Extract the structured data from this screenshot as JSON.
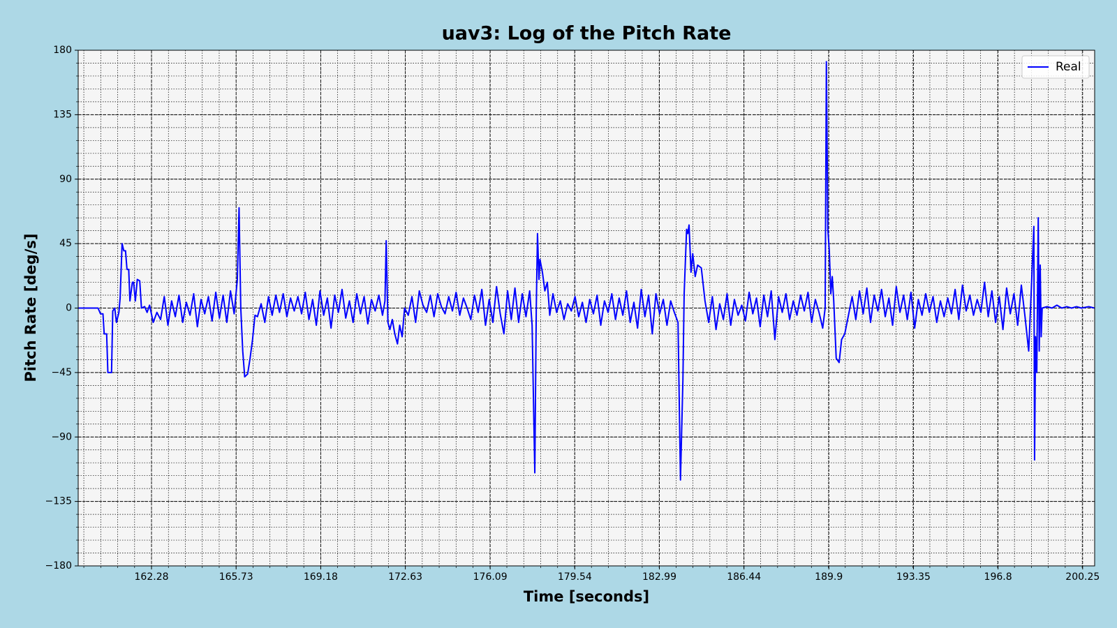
{
  "chart_data": {
    "type": "line",
    "title": "uav3: Log of the Pitch Rate",
    "xlabel": "Time [seconds]",
    "ylabel": "Pitch Rate [deg/s]",
    "xlim": [
      159.29,
      200.74
    ],
    "ylim": [
      -180,
      180
    ],
    "xticks": [
      162.28,
      165.73,
      169.18,
      172.63,
      176.09,
      179.54,
      182.99,
      186.44,
      189.9,
      193.35,
      196.8,
      200.25
    ],
    "yticks": [
      {
        "value": -180,
        "label": "−180"
      },
      {
        "value": -135,
        "label": "−135"
      },
      {
        "value": -90,
        "label": "−90"
      },
      {
        "value": -45,
        "label": "−45"
      },
      0,
      45,
      90,
      135,
      180
    ],
    "grid": true,
    "minor_grid": true,
    "legend": "upper right",
    "x": [
      159.29,
      160.1,
      160.2,
      160.3,
      160.35,
      160.45,
      160.5,
      160.65,
      160.7,
      160.78,
      160.85,
      160.95,
      161.0,
      161.08,
      161.15,
      161.22,
      161.28,
      161.35,
      161.4,
      161.5,
      161.55,
      161.62,
      161.7,
      161.8,
      161.87,
      162.0,
      162.1,
      162.2,
      162.35,
      162.5,
      162.65,
      162.8,
      162.95,
      163.1,
      163.25,
      163.4,
      163.55,
      163.7,
      163.85,
      164.0,
      164.15,
      164.3,
      164.45,
      164.6,
      164.75,
      164.9,
      165.05,
      165.2,
      165.35,
      165.5,
      165.65,
      165.78,
      165.85,
      165.92,
      166.0,
      166.08,
      166.2,
      166.3,
      166.4,
      166.5,
      166.6,
      166.75,
      166.9,
      167.05,
      167.2,
      167.35,
      167.5,
      167.65,
      167.8,
      167.95,
      168.1,
      168.25,
      168.4,
      168.55,
      168.7,
      168.85,
      169.0,
      169.15,
      169.3,
      169.45,
      169.6,
      169.75,
      169.9,
      170.05,
      170.2,
      170.35,
      170.5,
      170.65,
      170.8,
      170.95,
      171.1,
      171.25,
      171.4,
      171.55,
      171.7,
      171.8,
      171.85,
      171.92,
      172.0,
      172.1,
      172.2,
      172.31,
      172.4,
      172.5,
      172.6,
      172.75,
      172.9,
      173.05,
      173.2,
      173.35,
      173.5,
      173.65,
      173.8,
      173.95,
      174.1,
      174.25,
      174.4,
      174.55,
      174.7,
      174.85,
      175.0,
      175.15,
      175.3,
      175.45,
      175.6,
      175.75,
      175.9,
      176.05,
      176.2,
      176.35,
      176.5,
      176.65,
      176.8,
      176.95,
      177.1,
      177.25,
      177.4,
      177.55,
      177.7,
      177.8,
      177.91,
      177.97,
      178.02,
      178.08,
      178.12,
      178.22,
      178.32,
      178.42,
      178.52,
      178.65,
      178.8,
      178.95,
      179.1,
      179.25,
      179.4,
      179.55,
      179.7,
      179.85,
      180.0,
      180.15,
      180.3,
      180.45,
      180.6,
      180.75,
      180.9,
      181.05,
      181.2,
      181.35,
      181.5,
      181.65,
      181.8,
      181.95,
      182.1,
      182.25,
      182.4,
      182.55,
      182.7,
      182.85,
      183.0,
      183.15,
      183.3,
      183.45,
      183.6,
      183.75,
      183.85,
      183.95,
      184.0,
      184.1,
      184.15,
      184.2,
      184.28,
      184.35,
      184.45,
      184.55,
      184.7,
      184.85,
      185.0,
      185.15,
      185.3,
      185.45,
      185.6,
      185.75,
      185.9,
      186.05,
      186.2,
      186.35,
      186.5,
      186.65,
      186.8,
      186.95,
      187.1,
      187.25,
      187.4,
      187.55,
      187.7,
      187.85,
      188.0,
      188.15,
      188.3,
      188.45,
      188.6,
      188.75,
      188.9,
      189.05,
      189.2,
      189.35,
      189.5,
      189.65,
      189.75,
      189.8,
      189.86,
      189.92,
      189.98,
      190.04,
      190.1,
      190.2,
      190.32,
      190.42,
      190.55,
      190.7,
      190.85,
      191.0,
      191.15,
      191.3,
      191.45,
      191.6,
      191.75,
      191.9,
      192.05,
      192.2,
      192.35,
      192.5,
      192.65,
      192.8,
      192.95,
      193.1,
      193.25,
      193.4,
      193.55,
      193.7,
      193.85,
      194.0,
      194.15,
      194.3,
      194.45,
      194.6,
      194.75,
      194.9,
      195.05,
      195.2,
      195.35,
      195.5,
      195.65,
      195.8,
      195.95,
      196.1,
      196.25,
      196.4,
      196.55,
      196.7,
      196.85,
      197.0,
      197.15,
      197.3,
      197.45,
      197.6,
      197.75,
      197.9,
      198.05,
      198.15,
      198.26,
      198.29,
      198.33,
      198.38,
      198.44,
      198.48,
      198.52,
      198.56,
      198.6,
      198.8,
      199.0,
      199.2,
      199.4,
      199.6,
      199.8,
      200.0,
      200.2,
      200.5,
      200.74
    ],
    "series": [
      {
        "name": "Real",
        "color": "#0000ff",
        "values": [
          0,
          0,
          -4,
          -4,
          -18,
          -18,
          -45,
          -45,
          -2,
          0,
          -10,
          -3,
          7,
          45,
          40,
          40,
          27,
          27,
          5,
          18,
          18,
          5,
          20,
          19,
          0,
          1,
          -3,
          2,
          -10,
          -3,
          -8,
          8,
          -12,
          5,
          -6,
          9,
          -10,
          4,
          -5,
          10,
          -13,
          6,
          -4,
          8,
          -9,
          11,
          -7,
          9,
          -10,
          12,
          -4,
          20,
          70,
          0,
          -30,
          -48,
          -46,
          -35,
          -22,
          -5,
          -6,
          3,
          -10,
          8,
          -5,
          9,
          -3,
          10,
          -6,
          7,
          -2,
          8,
          -4,
          11,
          -8,
          6,
          -12,
          12,
          -5,
          7,
          -14,
          9,
          -3,
          13,
          -7,
          5,
          -10,
          10,
          -4,
          8,
          -11,
          6,
          -2,
          9,
          -5,
          5,
          47,
          -10,
          -15,
          -8,
          -18,
          -25,
          -12,
          -20,
          0,
          -5,
          8,
          -10,
          12,
          2,
          -3,
          9,
          -6,
          10,
          1,
          -4,
          8,
          -2,
          11,
          -5,
          7,
          0,
          -8,
          9,
          -3,
          13,
          -12,
          6,
          -10,
          15,
          -4,
          -18,
          12,
          -8,
          14,
          -10,
          10,
          -6,
          12,
          -12,
          -115,
          0,
          52,
          20,
          34,
          25,
          12,
          18,
          -5,
          10,
          -3,
          5,
          -8,
          3,
          -2,
          8,
          -6,
          4,
          -10,
          6,
          -4,
          9,
          -12,
          5,
          -3,
          10,
          -8,
          7,
          -5,
          12,
          -10,
          4,
          -14,
          13,
          -6,
          9,
          -18,
          10,
          -4,
          6,
          -12,
          5,
          -3,
          -10,
          -120,
          -50,
          10,
          55,
          52,
          58,
          25,
          38,
          22,
          30,
          28,
          5,
          -10,
          8,
          -15,
          3,
          -8,
          10,
          -12,
          6,
          -5,
          2,
          -9,
          11,
          -4,
          7,
          -13,
          9,
          -6,
          12,
          -22,
          8,
          -3,
          10,
          -8,
          5,
          -5,
          9,
          -2,
          11,
          -10,
          6,
          -3,
          -14,
          0,
          172,
          55,
          40,
          10,
          22,
          5,
          -35,
          -38,
          -22,
          -18,
          -5,
          8,
          -8,
          12,
          -4,
          14,
          -10,
          9,
          -2,
          13,
          -6,
          7,
          -12,
          15,
          -3,
          9,
          -8,
          11,
          -14,
          6,
          -5,
          10,
          -3,
          8,
          -10,
          5,
          -6,
          7,
          -4,
          13,
          -8,
          16,
          -2,
          9,
          -5,
          6,
          -3,
          18,
          -6,
          12,
          -10,
          8,
          -15,
          14,
          -4,
          10,
          -12,
          16,
          -6,
          -30,
          10,
          57,
          -106,
          -20,
          -45,
          63,
          -30,
          30,
          -20,
          0,
          1,
          0,
          2,
          0,
          1,
          0,
          1,
          0,
          1,
          0
        ]
      }
    ]
  }
}
